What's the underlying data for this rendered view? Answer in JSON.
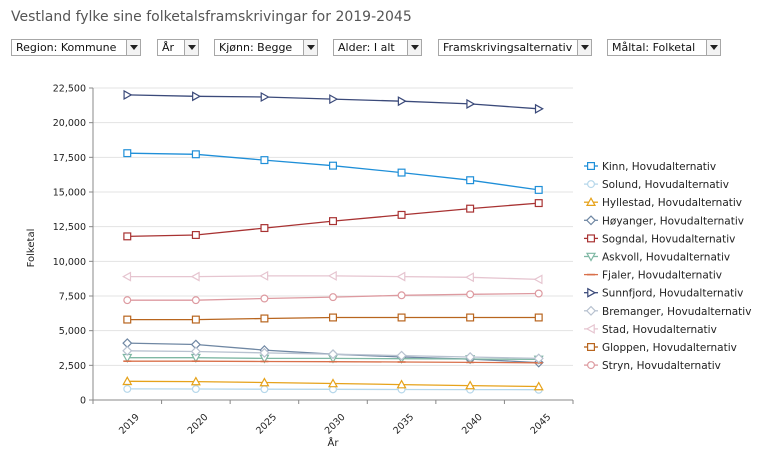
{
  "title": "Vestland fylke sine folketalsframskrivingar for 2019-2045",
  "filters": [
    {
      "label": "Region: Kommune"
    },
    {
      "label": "År"
    },
    {
      "label": "Kjønn: Begge"
    },
    {
      "label": "Alder: I alt"
    },
    {
      "label": "Framskrivingsalternativ"
    },
    {
      "label": "Måltal: Folketal"
    }
  ],
  "chart_data": {
    "type": "line",
    "title": "",
    "xlabel": "År",
    "ylabel": "Folketal",
    "x": [
      "2019",
      "2020",
      "2025",
      "2030",
      "2035",
      "2040",
      "2045"
    ],
    "ylim": [
      0,
      22500
    ],
    "yticks": [
      0,
      2500,
      5000,
      7500,
      10000,
      12500,
      15000,
      17500,
      20000,
      22500
    ],
    "ytick_labels": [
      "0",
      "2,500",
      "5,000",
      "7,500",
      "10,000",
      "12,500",
      "15,000",
      "17,500",
      "20,000",
      "22,500"
    ],
    "grid": "horizontal",
    "legend_position": "right",
    "series": [
      {
        "name": "Kinn, Hovudalternativ",
        "color": "#1f8fd8",
        "marker": "square",
        "values": [
          17800,
          17720,
          17300,
          16900,
          16400,
          15850,
          15150
        ]
      },
      {
        "name": "Solund, Hovudalternativ",
        "color": "#b6d7ea",
        "marker": "circle",
        "values": [
          800,
          790,
          780,
          770,
          760,
          750,
          740
        ]
      },
      {
        "name": "Hyllestad, Hovudalternativ",
        "color": "#e6a21a",
        "marker": "triangle-up",
        "values": [
          1350,
          1330,
          1260,
          1190,
          1110,
          1040,
          970
        ]
      },
      {
        "name": "Høyanger, Hovudalternativ",
        "color": "#6f87a3",
        "marker": "diamond",
        "values": [
          4100,
          4000,
          3600,
          3300,
          3100,
          2950,
          2700
        ]
      },
      {
        "name": "Sogndal, Hovudalternativ",
        "color": "#a83232",
        "marker": "square",
        "values": [
          11800,
          11900,
          12400,
          12900,
          13350,
          13800,
          14200
        ]
      },
      {
        "name": "Askvoll, Hovudalternativ",
        "color": "#7fb8a4",
        "marker": "triangle-down",
        "values": [
          3050,
          3050,
          3000,
          3000,
          2980,
          2960,
          2930
        ]
      },
      {
        "name": "Fjaler, Hovudalternativ",
        "color": "#d9704b",
        "marker": "line",
        "values": [
          2800,
          2800,
          2780,
          2760,
          2740,
          2710,
          2680
        ]
      },
      {
        "name": "Sunnfjord, Hovudalternativ",
        "color": "#3b4a7a",
        "marker": "triangle-right",
        "values": [
          22000,
          21900,
          21850,
          21700,
          21550,
          21350,
          21000
        ]
      },
      {
        "name": "Bremanger, Hovudalternativ",
        "color": "#b8c2d0",
        "marker": "diamond",
        "values": [
          3550,
          3500,
          3400,
          3300,
          3200,
          3100,
          3000
        ]
      },
      {
        "name": "Stad, Hovudalternativ",
        "color": "#e6c5d0",
        "marker": "triangle-left",
        "values": [
          8900,
          8900,
          8950,
          8950,
          8900,
          8850,
          8700
        ]
      },
      {
        "name": "Gloppen, Hovudalternativ",
        "color": "#b8651e",
        "marker": "square",
        "values": [
          5800,
          5800,
          5880,
          5950,
          5950,
          5950,
          5950
        ]
      },
      {
        "name": "Stryn, Hovudalternativ",
        "color": "#dd9aa0",
        "marker": "circle",
        "values": [
          7200,
          7200,
          7320,
          7420,
          7550,
          7620,
          7680
        ]
      }
    ]
  }
}
